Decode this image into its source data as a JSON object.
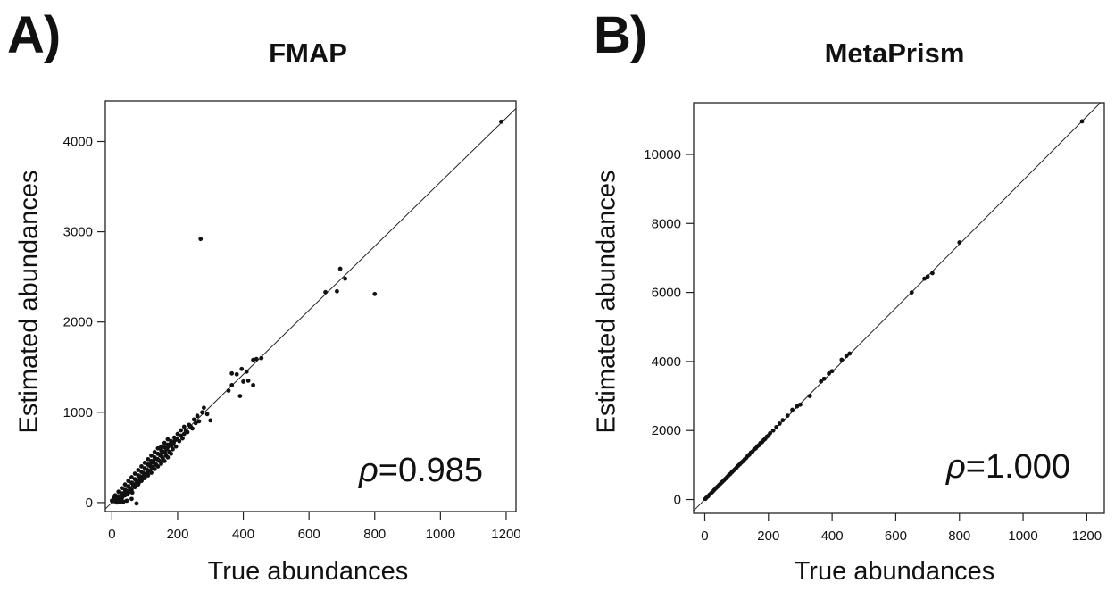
{
  "chart_data": [
    {
      "type": "scatter",
      "panel_label": "A)",
      "title": "FMAP",
      "xlabel": "True abundances",
      "ylabel": "Estimated abundances",
      "xlim": [
        -20,
        1230
      ],
      "ylim": [
        -100,
        4450
      ],
      "xticks": [
        0,
        200,
        400,
        600,
        800,
        1000,
        1200
      ],
      "yticks": [
        0,
        1000,
        2000,
        3000,
        4000
      ],
      "annotation_symbol": "ρ",
      "annotation_value": "=0.985",
      "reference_line": "y = 3.55x",
      "grid": false,
      "points": [
        [
          1185,
          4220
        ],
        [
          270,
          2920
        ],
        [
          695,
          2590
        ],
        [
          710,
          2480
        ],
        [
          650,
          2330
        ],
        [
          685,
          2340
        ],
        [
          800,
          2310
        ],
        [
          440,
          1590
        ],
        [
          455,
          1600
        ],
        [
          430,
          1580
        ],
        [
          395,
          1480
        ],
        [
          410,
          1450
        ],
        [
          380,
          1420
        ],
        [
          365,
          1430
        ],
        [
          415,
          1350
        ],
        [
          400,
          1340
        ],
        [
          365,
          1300
        ],
        [
          430,
          1300
        ],
        [
          355,
          1240
        ],
        [
          390,
          1180
        ],
        [
          280,
          1050
        ],
        [
          290,
          980
        ],
        [
          300,
          910
        ],
        [
          275,
          1000
        ],
        [
          260,
          960
        ],
        [
          250,
          920
        ],
        [
          235,
          860
        ],
        [
          220,
          840
        ],
        [
          210,
          800
        ],
        [
          200,
          760
        ],
        [
          190,
          720
        ],
        [
          180,
          680
        ],
        [
          170,
          640
        ],
        [
          160,
          610
        ],
        [
          150,
          580
        ],
        [
          140,
          540
        ],
        [
          130,
          500
        ],
        [
          120,
          460
        ],
        [
          110,
          420
        ],
        [
          100,
          380
        ],
        [
          90,
          340
        ],
        [
          80,
          300
        ],
        [
          70,
          260
        ],
        [
          60,
          220
        ],
        [
          50,
          180
        ],
        [
          40,
          140
        ],
        [
          30,
          100
        ],
        [
          20,
          70
        ],
        [
          10,
          35
        ],
        [
          5,
          15
        ],
        [
          195,
          620
        ],
        [
          185,
          590
        ],
        [
          175,
          560
        ],
        [
          165,
          520
        ],
        [
          155,
          490
        ],
        [
          145,
          460
        ],
        [
          135,
          420
        ],
        [
          125,
          390
        ],
        [
          115,
          350
        ],
        [
          105,
          320
        ],
        [
          95,
          290
        ],
        [
          85,
          260
        ],
        [
          75,
          230
        ],
        [
          65,
          190
        ],
        [
          55,
          160
        ],
        [
          45,
          130
        ],
        [
          35,
          100
        ],
        [
          25,
          70
        ],
        [
          15,
          40
        ],
        [
          205,
          680
        ],
        [
          215,
          710
        ],
        [
          170,
          700
        ],
        [
          160,
          660
        ],
        [
          150,
          620
        ],
        [
          140,
          600
        ],
        [
          130,
          560
        ],
        [
          120,
          520
        ],
        [
          110,
          480
        ],
        [
          100,
          440
        ],
        [
          90,
          400
        ],
        [
          80,
          360
        ],
        [
          70,
          320
        ],
        [
          60,
          280
        ],
        [
          50,
          240
        ],
        [
          40,
          200
        ],
        [
          30,
          160
        ],
        [
          20,
          120
        ],
        [
          10,
          80
        ],
        [
          180,
          540
        ],
        [
          170,
          500
        ],
        [
          160,
          460
        ],
        [
          150,
          430
        ],
        [
          140,
          400
        ],
        [
          130,
          370
        ],
        [
          120,
          330
        ],
        [
          110,
          300
        ],
        [
          100,
          270
        ],
        [
          90,
          240
        ],
        [
          80,
          200
        ],
        [
          70,
          170
        ],
        [
          60,
          140
        ],
        [
          50,
          110
        ],
        [
          40,
          80
        ],
        [
          30,
          50
        ],
        [
          20,
          30
        ],
        [
          75,
          -10
        ],
        [
          60,
          40
        ],
        [
          45,
          20
        ],
        [
          35,
          10
        ],
        [
          25,
          5
        ],
        [
          15,
          0
        ],
        [
          0,
          20
        ],
        [
          5,
          40
        ],
        [
          8,
          60
        ],
        [
          12,
          20
        ],
        [
          18,
          10
        ],
        [
          22,
          45
        ],
        [
          28,
          30
        ],
        [
          32,
          60
        ],
        [
          38,
          85
        ],
        [
          42,
          110
        ],
        [
          48,
          90
        ],
        [
          52,
          130
        ],
        [
          58,
          150
        ],
        [
          62,
          110
        ],
        [
          68,
          200
        ],
        [
          72,
          180
        ],
        [
          78,
          240
        ],
        [
          82,
          220
        ],
        [
          88,
          280
        ],
        [
          92,
          260
        ],
        [
          98,
          320
        ],
        [
          102,
          300
        ],
        [
          108,
          360
        ],
        [
          112,
          340
        ],
        [
          118,
          400
        ],
        [
          122,
          380
        ],
        [
          128,
          440
        ],
        [
          132,
          420
        ],
        [
          138,
          480
        ],
        [
          142,
          470
        ],
        [
          148,
          520
        ],
        [
          152,
          510
        ],
        [
          158,
          560
        ],
        [
          162,
          550
        ],
        [
          168,
          590
        ],
        [
          172,
          620
        ],
        [
          178,
          650
        ],
        [
          182,
          630
        ],
        [
          188,
          660
        ],
        [
          192,
          690
        ],
        [
          198,
          700
        ],
        [
          230,
          780
        ],
        [
          245,
          820
        ],
        [
          255,
          880
        ],
        [
          265,
          900
        ],
        [
          225,
          800
        ],
        [
          240,
          840
        ],
        [
          210,
          740
        ],
        [
          220,
          760
        ],
        [
          120,
          440
        ],
        [
          130,
          480
        ],
        [
          150,
          540
        ],
        [
          165,
          600
        ]
      ]
    },
    {
      "type": "scatter",
      "panel_label": "B)",
      "title": "MetaPrism",
      "xlabel": "True abundances",
      "ylabel": "Estimated abundances",
      "xlim": [
        -35,
        1255
      ],
      "ylim": [
        -400,
        11500
      ],
      "xticks": [
        0,
        200,
        400,
        600,
        800,
        1000,
        1200
      ],
      "yticks": [
        0,
        2000,
        4000,
        6000,
        8000,
        10000
      ],
      "annotation_symbol": "ρ",
      "annotation_value": "=1.000",
      "reference_line": "y = 9.25x",
      "grid": false,
      "points": [
        [
          1185,
          10960
        ],
        [
          800,
          7450
        ],
        [
          715,
          6560
        ],
        [
          700,
          6460
        ],
        [
          690,
          6400
        ],
        [
          650,
          6000
        ],
        [
          455,
          4230
        ],
        [
          445,
          4160
        ],
        [
          430,
          4050
        ],
        [
          400,
          3720
        ],
        [
          390,
          3650
        ],
        [
          375,
          3500
        ],
        [
          365,
          3420
        ],
        [
          330,
          3000
        ],
        [
          300,
          2750
        ],
        [
          290,
          2700
        ],
        [
          275,
          2600
        ],
        [
          260,
          2430
        ],
        [
          245,
          2300
        ],
        [
          235,
          2200
        ],
        [
          225,
          2100
        ],
        [
          215,
          2000
        ],
        [
          205,
          1920
        ],
        [
          195,
          1820
        ],
        [
          185,
          1720
        ],
        [
          175,
          1640
        ],
        [
          165,
          1540
        ],
        [
          155,
          1450
        ],
        [
          145,
          1360
        ],
        [
          135,
          1260
        ],
        [
          125,
          1160
        ],
        [
          115,
          1070
        ],
        [
          105,
          980
        ],
        [
          95,
          880
        ],
        [
          85,
          790
        ],
        [
          75,
          700
        ],
        [
          65,
          600
        ],
        [
          55,
          510
        ],
        [
          45,
          420
        ],
        [
          35,
          330
        ],
        [
          25,
          230
        ],
        [
          15,
          140
        ],
        [
          5,
          50
        ],
        [
          2,
          20
        ],
        [
          10,
          90
        ],
        [
          20,
          185
        ],
        [
          30,
          280
        ],
        [
          40,
          370
        ],
        [
          50,
          465
        ],
        [
          60,
          555
        ],
        [
          70,
          650
        ],
        [
          80,
          740
        ],
        [
          90,
          835
        ],
        [
          100,
          925
        ],
        [
          110,
          1020
        ],
        [
          120,
          1110
        ],
        [
          130,
          1205
        ],
        [
          140,
          1300
        ],
        [
          150,
          1390
        ],
        [
          160,
          1480
        ],
        [
          170,
          1575
        ],
        [
          180,
          1665
        ],
        [
          190,
          1760
        ],
        [
          200,
          1850
        ]
      ]
    }
  ]
}
